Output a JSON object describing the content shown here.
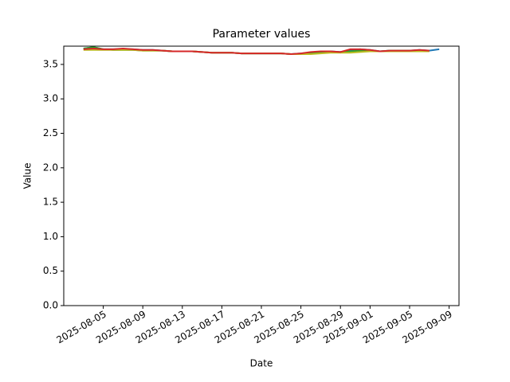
{
  "chart_data": {
    "type": "line",
    "title": "Parameter values",
    "xlabel": "Date",
    "ylabel": "Value",
    "x": [
      "2025-08-03",
      "2025-08-04",
      "2025-08-05",
      "2025-08-06",
      "2025-08-07",
      "2025-08-08",
      "2025-08-09",
      "2025-08-10",
      "2025-08-11",
      "2025-08-12",
      "2025-08-13",
      "2025-08-14",
      "2025-08-15",
      "2025-08-16",
      "2025-08-17",
      "2025-08-18",
      "2025-08-19",
      "2025-08-20",
      "2025-08-21",
      "2025-08-22",
      "2025-08-23",
      "2025-08-24",
      "2025-08-25",
      "2025-08-26",
      "2025-08-27",
      "2025-08-28",
      "2025-08-29",
      "2025-08-30",
      "2025-08-31",
      "2025-09-01",
      "2025-09-02",
      "2025-09-03",
      "2025-09-04",
      "2025-09-05",
      "2025-09-06",
      "2025-09-07",
      "2025-09-08"
    ],
    "series": [
      {
        "color": "#1f77b4",
        "values": [
          3.73,
          3.75,
          3.72,
          3.72,
          3.72,
          3.72,
          3.71,
          3.71,
          3.7,
          3.69,
          3.69,
          3.69,
          3.68,
          3.67,
          3.67,
          3.67,
          3.66,
          3.66,
          3.66,
          3.66,
          3.66,
          3.65,
          3.66,
          3.67,
          3.68,
          3.69,
          3.68,
          3.71,
          3.72,
          3.71,
          3.69,
          3.7,
          3.7,
          3.7,
          3.71,
          3.7,
          3.72
        ]
      },
      {
        "color": "#2ca02c",
        "values": [
          3.73,
          3.75,
          3.72,
          3.71,
          3.71,
          3.71,
          3.7,
          3.7,
          3.7,
          3.69,
          3.69,
          3.69,
          3.68,
          3.67,
          3.67,
          3.67,
          3.66,
          3.66,
          3.66,
          3.66,
          3.66,
          3.65,
          3.65,
          3.66,
          3.67,
          3.68,
          3.68,
          3.69,
          3.7,
          3.7,
          3.69,
          3.7,
          3.7,
          3.7,
          3.7,
          3.7,
          null
        ]
      },
      {
        "color": "#bcbd22",
        "values": [
          3.71,
          3.71,
          3.71,
          3.71,
          3.71,
          3.71,
          3.7,
          3.7,
          3.7,
          3.69,
          3.69,
          3.69,
          3.68,
          3.67,
          3.67,
          3.67,
          3.66,
          3.66,
          3.66,
          3.66,
          3.66,
          3.65,
          3.65,
          3.65,
          3.66,
          3.67,
          3.67,
          3.67,
          3.68,
          3.69,
          3.69,
          3.69,
          3.69,
          3.69,
          3.69,
          3.69,
          null
        ]
      },
      {
        "color": "#d62728",
        "values": [
          3.72,
          3.73,
          3.72,
          3.72,
          3.73,
          3.72,
          3.71,
          3.71,
          3.7,
          3.69,
          3.69,
          3.69,
          3.68,
          3.67,
          3.67,
          3.67,
          3.66,
          3.66,
          3.66,
          3.66,
          3.66,
          3.65,
          3.66,
          3.68,
          3.69,
          3.69,
          3.68,
          3.72,
          3.72,
          3.71,
          3.69,
          3.7,
          3.7,
          3.7,
          3.71,
          3.7,
          null
        ]
      }
    ],
    "xlim": [
      "2025-08-01",
      "2025-09-10"
    ],
    "xticks": [
      "2025-08-05",
      "2025-08-09",
      "2025-08-13",
      "2025-08-17",
      "2025-08-21",
      "2025-08-25",
      "2025-08-29",
      "2025-09-01",
      "2025-09-05",
      "2025-09-09"
    ],
    "ylim": [
      0,
      3.765
    ],
    "yticks": [
      {
        "value": 0,
        "label": "0.0"
      },
      0.5,
      {
        "value": 1,
        "label": "1.0"
      },
      1.5,
      {
        "value": 2,
        "label": "2.0"
      },
      2.5,
      {
        "value": 3,
        "label": "3.0"
      },
      3.5
    ]
  }
}
